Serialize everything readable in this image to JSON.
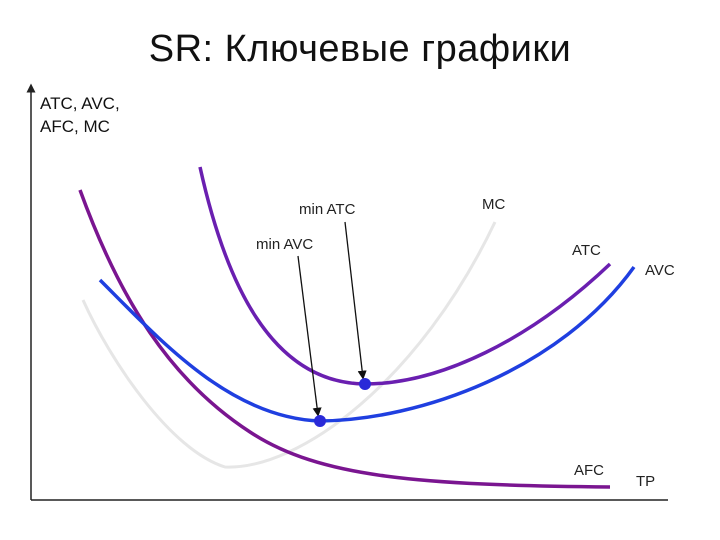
{
  "title": "SR: Ключевые графики",
  "axes": {
    "y_label": "ATC, AVC,\nAFC, MC",
    "x_label": "TP"
  },
  "curves": {
    "mc": "MC",
    "atc": "ATC",
    "avc": "AVC",
    "afc": "AFC"
  },
  "annotations": {
    "min_atc": "min ATC",
    "min_avc": "min AVC"
  },
  "colors": {
    "atc": "#6a1fb0",
    "avc": "#1f3fe0",
    "afc": "#7a1590",
    "mc": "#e6e6e6",
    "axis": "#222222",
    "point": "#2a2ad8"
  }
}
